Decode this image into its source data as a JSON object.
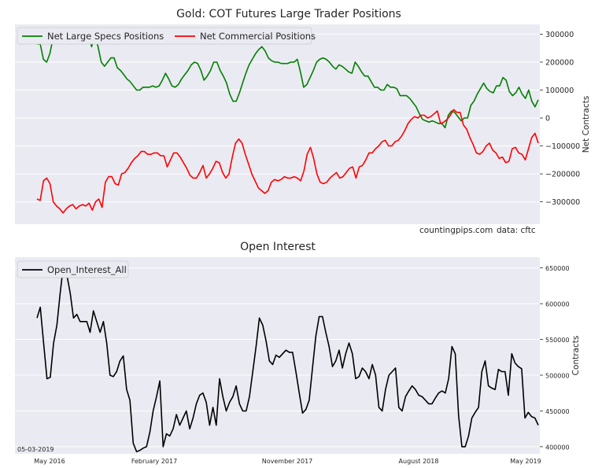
{
  "chart_data": [
    {
      "type": "line",
      "title": "Gold: COT Futures Large Trader Positions",
      "ylabel": "Net Contracts",
      "ylim": [
        -380000,
        335000
      ],
      "yticks": [
        -300000,
        -200000,
        -100000,
        0,
        100000,
        200000,
        300000
      ],
      "ytick_labels": [
        "−300000",
        "−200000",
        "−100000",
        "0",
        "100000",
        "200000",
        "300000"
      ],
      "grid": true,
      "legend": "top-left",
      "annotations": [
        "countingpips.com",
        "data: cftc"
      ],
      "series": [
        {
          "name": "Net Large Specs Positions",
          "color": "#008000",
          "values": [
            265000,
            265000,
            210000,
            200000,
            230000,
            285000,
            300000,
            300000,
            300000,
            290000,
            290000,
            290000,
            300000,
            290000,
            285000,
            290000,
            300000,
            255000,
            295000,
            255000,
            200000,
            185000,
            200000,
            215000,
            215000,
            180000,
            170000,
            155000,
            140000,
            130000,
            115000,
            100000,
            100000,
            110000,
            110000,
            110000,
            115000,
            110000,
            115000,
            135000,
            160000,
            140000,
            115000,
            110000,
            120000,
            140000,
            155000,
            170000,
            190000,
            200000,
            195000,
            170000,
            135000,
            150000,
            170000,
            200000,
            200000,
            170000,
            150000,
            125000,
            85000,
            60000,
            60000,
            90000,
            125000,
            160000,
            190000,
            210000,
            230000,
            245000,
            255000,
            240000,
            215000,
            205000,
            200000,
            200000,
            195000,
            195000,
            195000,
            200000,
            200000,
            210000,
            165000,
            110000,
            120000,
            145000,
            170000,
            200000,
            210000,
            215000,
            210000,
            200000,
            185000,
            175000,
            190000,
            185000,
            175000,
            165000,
            160000,
            200000,
            185000,
            165000,
            150000,
            150000,
            130000,
            110000,
            110000,
            100000,
            100000,
            120000,
            110000,
            110000,
            105000,
            80000,
            80000,
            80000,
            70000,
            55000,
            40000,
            15000,
            -5000,
            -10000,
            -15000,
            -10000,
            -15000,
            -20000,
            -20000,
            -35000,
            10000,
            25000,
            20000,
            5000,
            -10000,
            0,
            0,
            45000,
            60000,
            85000,
            105000,
            125000,
            105000,
            95000,
            90000,
            115000,
            115000,
            145000,
            135000,
            95000,
            80000,
            90000,
            110000,
            85000,
            70000,
            100000,
            60000,
            40000,
            65000
          ]
        },
        {
          "name": "Net Commercial Positions",
          "color": "#ff0000",
          "values": [
            -290000,
            -295000,
            -225000,
            -215000,
            -235000,
            -300000,
            -315000,
            -325000,
            -340000,
            -325000,
            -315000,
            -310000,
            -325000,
            -315000,
            -310000,
            -315000,
            -305000,
            -330000,
            -300000,
            -290000,
            -320000,
            -230000,
            -210000,
            -210000,
            -235000,
            -240000,
            -200000,
            -195000,
            -180000,
            -160000,
            -145000,
            -135000,
            -120000,
            -120000,
            -130000,
            -130000,
            -125000,
            -125000,
            -135000,
            -135000,
            -175000,
            -150000,
            -125000,
            -125000,
            -140000,
            -160000,
            -180000,
            -205000,
            -215000,
            -215000,
            -195000,
            -170000,
            -215000,
            -200000,
            -180000,
            -155000,
            -160000,
            -195000,
            -215000,
            -200000,
            -140000,
            -90000,
            -75000,
            -90000,
            -130000,
            -165000,
            -200000,
            -225000,
            -250000,
            -260000,
            -270000,
            -260000,
            -230000,
            -220000,
            -225000,
            -220000,
            -210000,
            -215000,
            -215000,
            -210000,
            -215000,
            -225000,
            -190000,
            -130000,
            -105000,
            -145000,
            -200000,
            -230000,
            -235000,
            -230000,
            -215000,
            -205000,
            -195000,
            -215000,
            -210000,
            -195000,
            -180000,
            -175000,
            -215000,
            -175000,
            -170000,
            -150000,
            -125000,
            -125000,
            -110000,
            -100000,
            -85000,
            -80000,
            -100000,
            -100000,
            -85000,
            -80000,
            -65000,
            -45000,
            -20000,
            -5000,
            5000,
            0,
            10000,
            10000,
            0,
            5000,
            15000,
            25000,
            -20000,
            -15000,
            -5000,
            10000,
            30000,
            20000,
            20000,
            -25000,
            -40000,
            -70000,
            -95000,
            -125000,
            -130000,
            -120000,
            -100000,
            -90000,
            -115000,
            -125000,
            -145000,
            -140000,
            -160000,
            -155000,
            -110000,
            -105000,
            -125000,
            -130000,
            -150000,
            -110000,
            -70000,
            -55000,
            -90000
          ]
        }
      ]
    },
    {
      "type": "line",
      "title": "Open Interest",
      "ylabel": "Contracts",
      "ylim": [
        390000,
        665000
      ],
      "yticks": [
        400000,
        450000,
        500000,
        550000,
        600000,
        650000
      ],
      "ytick_labels": [
        "400000",
        "450000",
        "500000",
        "550000",
        "600000",
        "650000"
      ],
      "xtick_labels": [
        "May 2016",
        "February 2017",
        "November 2017",
        "August 2018",
        "May 2019"
      ],
      "grid": true,
      "legend": "top-left",
      "annotations": [
        "05-03-2019"
      ],
      "series": [
        {
          "name": "Open_Interest_All",
          "color": "#000000",
          "values": [
            580000,
            595000,
            545000,
            495000,
            497000,
            545000,
            570000,
            615000,
            655000,
            640000,
            615000,
            580000,
            585000,
            575000,
            575000,
            575000,
            560000,
            590000,
            575000,
            560000,
            575000,
            545000,
            500000,
            498000,
            505000,
            520000,
            527000,
            480000,
            465000,
            405000,
            393000,
            395000,
            398000,
            400000,
            420000,
            450000,
            470000,
            492000,
            400000,
            418000,
            415000,
            425000,
            445000,
            430000,
            440000,
            450000,
            425000,
            440000,
            460000,
            472000,
            475000,
            462000,
            430000,
            455000,
            430000,
            495000,
            470000,
            450000,
            462000,
            470000,
            485000,
            460000,
            450000,
            450000,
            470000,
            505000,
            540000,
            580000,
            570000,
            548000,
            520000,
            515000,
            528000,
            525000,
            530000,
            535000,
            532000,
            532000,
            505000,
            475000,
            447000,
            452000,
            465000,
            510000,
            555000,
            582000,
            582000,
            560000,
            540000,
            512000,
            520000,
            535000,
            510000,
            530000,
            545000,
            530000,
            495000,
            498000,
            510000,
            505000,
            495000,
            515000,
            500000,
            455000,
            450000,
            480000,
            500000,
            505000,
            510000,
            455000,
            450000,
            470000,
            478000,
            485000,
            480000,
            472000,
            470000,
            465000,
            460000,
            460000,
            468000,
            475000,
            478000,
            475000,
            495000,
            540000,
            530000,
            443000,
            400000,
            400000,
            415000,
            440000,
            448000,
            455000,
            505000,
            520000,
            485000,
            482000,
            480000,
            508000,
            505000,
            505000,
            472000,
            530000,
            517000,
            512000,
            509000,
            440000,
            448000,
            442000,
            440000,
            430000
          ]
        }
      ]
    }
  ]
}
